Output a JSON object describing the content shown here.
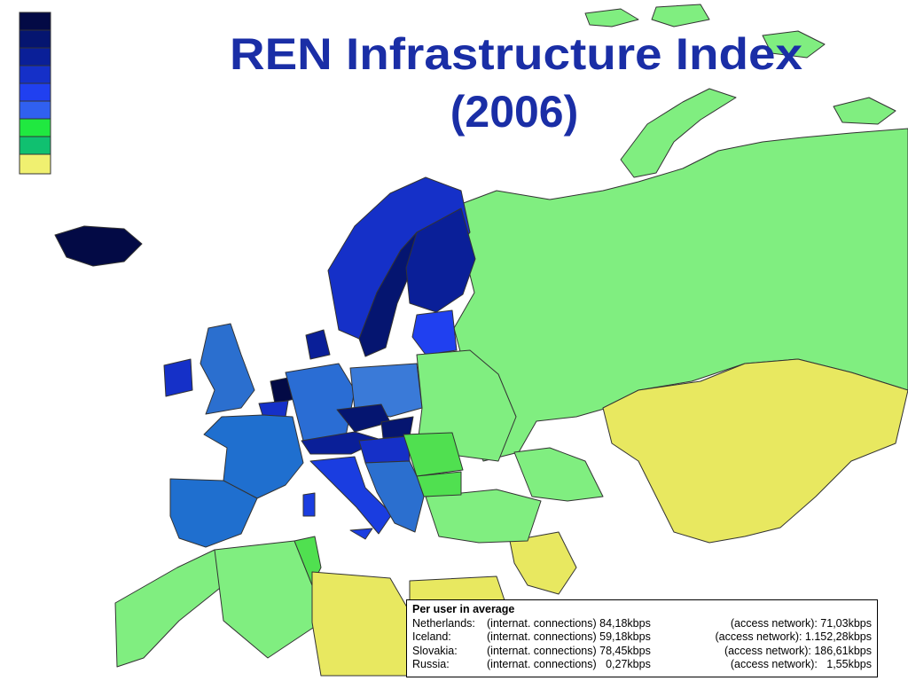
{
  "title": [
    "REN Infrastructure Index",
    "(2006)"
  ],
  "note": {
    "heading": "Per user in average",
    "rows": [
      {
        "country": "Netherlands:",
        "internat": "(internat. connections) 84,18kbps",
        "access": "(access network): 71,03kbps"
      },
      {
        "country": "Iceland:",
        "internat": "(internat. connections) 59,18kbps",
        "access": "(access network): 1.152,28kbps"
      },
      {
        "country": "Slovakia:",
        "internat": "(internat. connections) 78,45kbps",
        "access": "(access network): 186,61kbps"
      },
      {
        "country": "Russia:",
        "internat": "(internat. connections)   0,27kbps",
        "access": "(access network):   1,55kbps"
      }
    ]
  }
}
